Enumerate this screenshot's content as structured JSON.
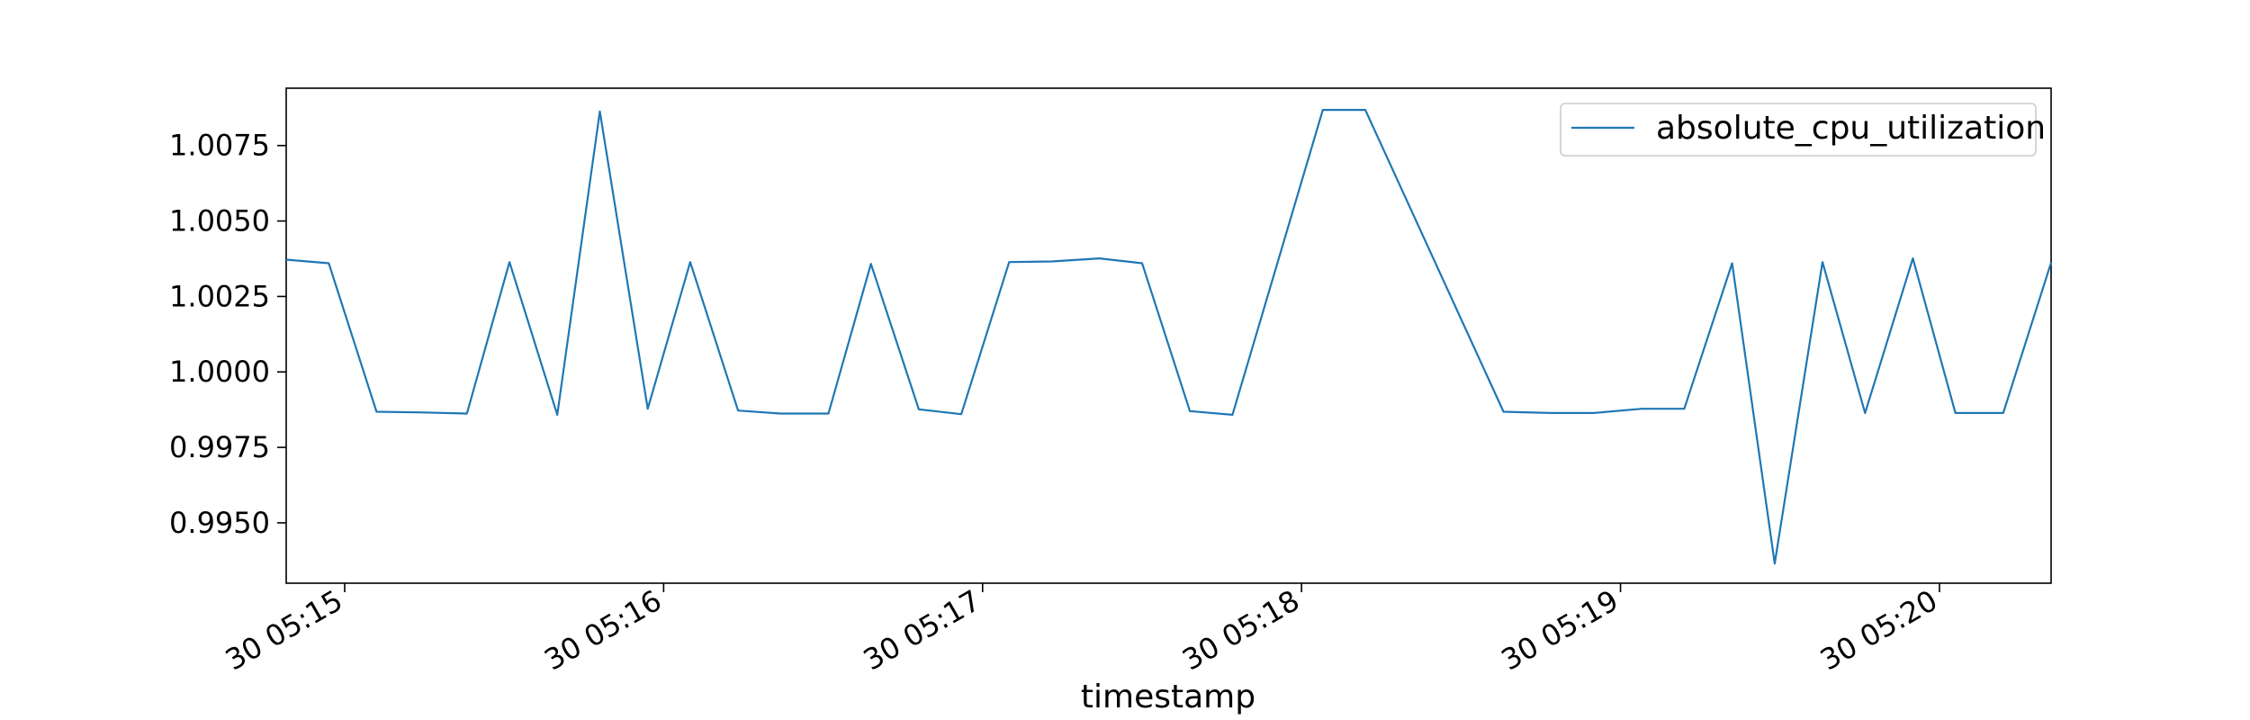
{
  "chart_data": {
    "type": "line",
    "title": "",
    "xlabel": "timestamp",
    "ylabel": "",
    "x_tick_labels": [
      "30 05:15",
      "30 05:16",
      "30 05:17",
      "30 05:18",
      "30 05:19",
      "30 05:20"
    ],
    "y_tick_labels": [
      "0.9950",
      "0.9975",
      "1.0000",
      "1.0025",
      "1.0050",
      "1.0075"
    ],
    "y_ticks": [
      0.995,
      0.9975,
      1.0,
      1.0025,
      1.005,
      1.0075
    ],
    "ylim": [
      0.993,
      1.0094
    ],
    "xlim": [
      "05:14:49",
      "05:20:21"
    ],
    "legend_position": "top-right",
    "grid": false,
    "series": [
      {
        "name": "absolute_cpu_utilization",
        "color": "#1f77b4",
        "x": [
          "05:14:49",
          "05:14:57",
          "05:15:06",
          "05:15:14",
          "05:15:23",
          "05:15:31",
          "05:15:40",
          "05:15:48",
          "05:15:57",
          "05:16:05",
          "05:16:14",
          "05:16:22",
          "05:16:31",
          "05:16:39",
          "05:16:48",
          "05:16:56",
          "05:17:05",
          "05:17:13",
          "05:17:22",
          "05:17:30",
          "05:17:39",
          "05:17:47",
          "05:18:04",
          "05:18:12",
          "05:18:38",
          "05:18:47",
          "05:18:55",
          "05:19:04",
          "05:19:12",
          "05:19:21",
          "05:19:29",
          "05:19:38",
          "05:19:46",
          "05:19:55",
          "05:20:03",
          "05:20:12",
          "05:20:21"
        ],
        "values": [
          1.00372,
          1.0036,
          0.99868,
          0.99866,
          0.99862,
          1.00364,
          0.99858,
          1.00863,
          0.99878,
          1.00364,
          0.99872,
          0.99862,
          0.99862,
          1.00358,
          0.99876,
          0.9986,
          1.00364,
          1.00366,
          1.00376,
          1.0036,
          0.9987,
          0.99858,
          1.00868,
          1.00868,
          0.99868,
          0.99864,
          0.99864,
          0.99878,
          0.99878,
          1.0036,
          0.99365,
          1.00364,
          0.99864,
          1.00376,
          0.99864,
          0.99864,
          1.00362
        ]
      }
    ]
  }
}
